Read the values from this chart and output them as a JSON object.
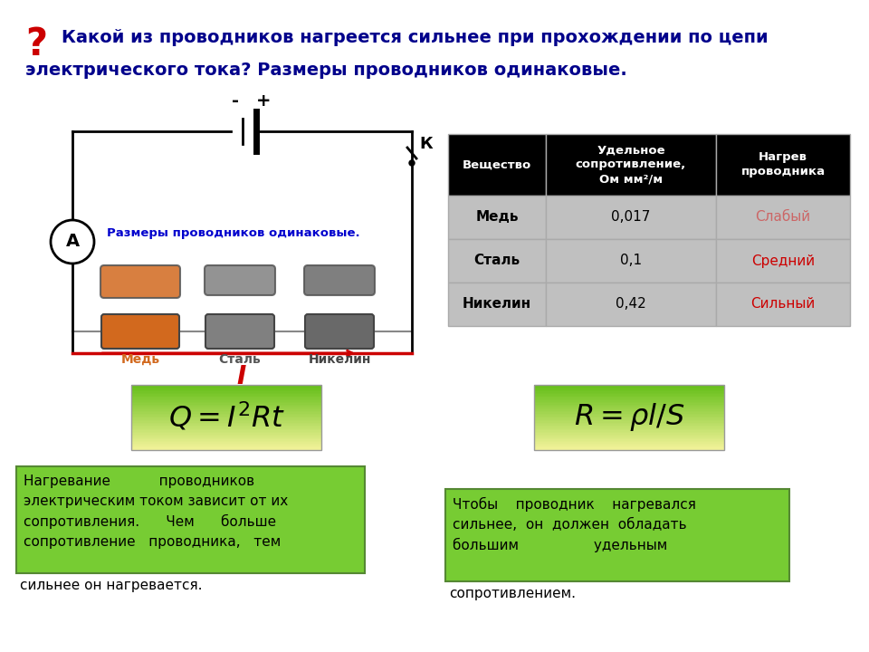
{
  "bg_color": "#ffffff",
  "title_question_mark": "?",
  "title_color": "#00008B",
  "question_mark_color": "#cc0000",
  "circuit_label": "Размеры проводников одинаковые.",
  "circuit_label_color": "#0000cd",
  "conductor_labels": [
    "Медь",
    "Сталь",
    "Никелин"
  ],
  "conductor_colors": [
    "#d2691e",
    "#808080",
    "#696969"
  ],
  "current_label": "I",
  "current_color": "#cc0000",
  "ammeter_label": "A",
  "K_label": "К",
  "table_header_bg": "#000000",
  "table_header_fg": "#ffffff",
  "table_row_bg": "#c0c0c0",
  "table_col1_header": "Вещество",
  "table_col2_header": "Удельное\nсопротивление,\nОм мм²/м",
  "table_col3_header": "Нагрев\nпроводника",
  "table_rows": [
    [
      "Медь",
      "0,017",
      "Слабый",
      "#cc6666"
    ],
    [
      "Сталь",
      "0,1",
      "Средний",
      "#cc0000"
    ],
    [
      "Никелин",
      "0,42",
      "Сильный",
      "#cc0000"
    ]
  ],
  "text_box1_lines": [
    "Нагревание           проводников",
    "электрическим током зависит от их",
    "сопротивления.      Чем      больше",
    "сопротивление   проводника,   тем"
  ],
  "text_box1_extra": "сильнее он нагревается.",
  "text_box2_lines": [
    "Чтобы    проводник    нагревался",
    "сильнее,  он  должен  обладать",
    "большим                 удельным"
  ],
  "text_box2_extra": "сопротивлением.",
  "text_box_bg": "#77cc33",
  "text_box_fg": "#000000"
}
